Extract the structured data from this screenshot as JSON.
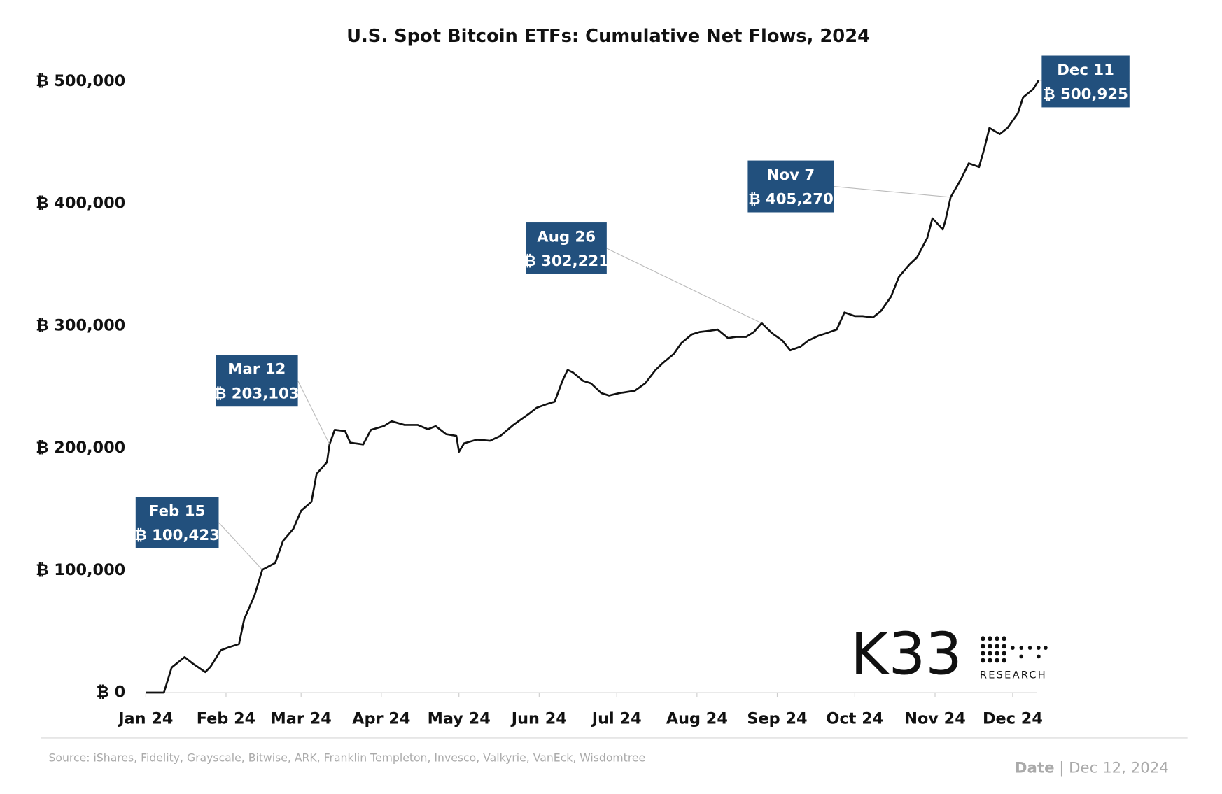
{
  "chart_data": {
    "type": "line",
    "title": "U.S. Spot Bitcoin ETFs: Cumulative Net Flows, 2024",
    "x": [
      "2024-01-01",
      "2024-01-08",
      "2024-01-11",
      "2024-01-16",
      "2024-01-19",
      "2024-01-24",
      "2024-01-26",
      "2024-01-30",
      "2024-02-02",
      "2024-02-06",
      "2024-02-08",
      "2024-02-12",
      "2024-02-15",
      "2024-02-20",
      "2024-02-23",
      "2024-02-27",
      "2024-03-01",
      "2024-03-05",
      "2024-03-07",
      "2024-03-11",
      "2024-03-12",
      "2024-03-14",
      "2024-03-18",
      "2024-03-20",
      "2024-03-25",
      "2024-03-28",
      "2024-04-02",
      "2024-04-05",
      "2024-04-10",
      "2024-04-15",
      "2024-04-19",
      "2024-04-22",
      "2024-04-26",
      "2024-04-30",
      "2024-05-01",
      "2024-05-03",
      "2024-05-08",
      "2024-05-13",
      "2024-05-17",
      "2024-05-22",
      "2024-05-28",
      "2024-05-31",
      "2024-06-04",
      "2024-06-07",
      "2024-06-10",
      "2024-06-12",
      "2024-06-14",
      "2024-06-18",
      "2024-06-21",
      "2024-06-25",
      "2024-06-28",
      "2024-07-02",
      "2024-07-08",
      "2024-07-12",
      "2024-07-16",
      "2024-07-19",
      "2024-07-23",
      "2024-07-26",
      "2024-07-30",
      "2024-08-02",
      "2024-08-06",
      "2024-08-09",
      "2024-08-13",
      "2024-08-16",
      "2024-08-20",
      "2024-08-23",
      "2024-08-26",
      "2024-08-30",
      "2024-09-03",
      "2024-09-06",
      "2024-09-10",
      "2024-09-13",
      "2024-09-17",
      "2024-09-20",
      "2024-09-24",
      "2024-09-27",
      "2024-10-01",
      "2024-10-04",
      "2024-10-08",
      "2024-10-11",
      "2024-10-15",
      "2024-10-18",
      "2024-10-22",
      "2024-10-25",
      "2024-10-29",
      "2024-10-31",
      "2024-11-04",
      "2024-11-05",
      "2024-11-07",
      "2024-11-11",
      "2024-11-14",
      "2024-11-18",
      "2024-11-20",
      "2024-11-22",
      "2024-11-26",
      "2024-11-29",
      "2024-12-03",
      "2024-12-05",
      "2024-12-09",
      "2024-12-11"
    ],
    "series": [
      {
        "color": "#111111",
        "values": [
          0,
          0,
          20500,
          29000,
          24000,
          16700,
          21000,
          34600,
          37000,
          39700,
          60000,
          79500,
          100423,
          106000,
          124000,
          134000,
          148700,
          156000,
          179000,
          188500,
          203103,
          215000,
          214000,
          204500,
          203000,
          215000,
          218000,
          222000,
          219000,
          219000,
          215500,
          218000,
          211500,
          210000,
          197000,
          204000,
          207000,
          206000,
          210000,
          219000,
          228000,
          233000,
          236000,
          238000,
          255000,
          264000,
          262000,
          255000,
          253000,
          245000,
          243000,
          245000,
          247000,
          253000,
          264000,
          270000,
          277000,
          286000,
          293000,
          295000,
          296000,
          297000,
          290000,
          291000,
          291000,
          295000,
          302221,
          294000,
          288000,
          280000,
          283000,
          288000,
          292000,
          294000,
          297000,
          311000,
          308000,
          308000,
          307000,
          312000,
          324000,
          340000,
          350000,
          356000,
          372000,
          388000,
          379000,
          386000,
          405270,
          420000,
          433000,
          430000,
          445000,
          462000,
          457000,
          462000,
          474000,
          487000,
          494000,
          500925
        ]
      }
    ],
    "xlim": [
      "2024-01-01",
      "2024-12-11"
    ],
    "xticks": [
      {
        "value": "2024-01-01",
        "label": "Jan 24"
      },
      {
        "value": "2024-02-01",
        "label": "Feb 24"
      },
      {
        "value": "2024-03-01",
        "label": "Mar 24"
      },
      {
        "value": "2024-04-01",
        "label": "Apr 24"
      },
      {
        "value": "2024-05-01",
        "label": "May 24"
      },
      {
        "value": "2024-06-01",
        "label": "Jun 24"
      },
      {
        "value": "2024-07-01",
        "label": "Jul 24"
      },
      {
        "value": "2024-08-01",
        "label": "Aug 24"
      },
      {
        "value": "2024-09-01",
        "label": "Sep 24"
      },
      {
        "value": "2024-10-01",
        "label": "Oct 24"
      },
      {
        "value": "2024-11-01",
        "label": "Nov 24"
      },
      {
        "value": "2024-12-01",
        "label": "Dec 24"
      }
    ],
    "ylim": [
      0,
      500000
    ],
    "yticks": [
      {
        "value": 0,
        "label": "₿ 0"
      },
      {
        "value": 100000,
        "label": "₿ 100,000"
      },
      {
        "value": 200000,
        "label": "₿ 200,000"
      },
      {
        "value": 300000,
        "label": "₿ 300,000"
      },
      {
        "value": 400000,
        "label": "₿ 400,000"
      },
      {
        "value": 500000,
        "label": "₿ 500,000"
      }
    ],
    "annotation_color": "#22507d",
    "annotations": [
      {
        "x": "2024-02-15",
        "label": "Feb 15",
        "value": 100423,
        "value_label": "₿ 100,423"
      },
      {
        "x": "2024-03-12",
        "label": "Mar 12",
        "value": 203103,
        "value_label": "₿ 203,103"
      },
      {
        "x": "2024-08-26",
        "label": "Aug 26",
        "value": 302221,
        "value_label": "₿ 302,221"
      },
      {
        "x": "2024-11-07",
        "label": "Nov 7",
        "value": 405270,
        "value_label": "₿ 405,270"
      },
      {
        "x": "2024-12-11",
        "label": "Dec 11",
        "value": 500925,
        "value_label": "₿ 500,925"
      }
    ],
    "source": "Source: iShares, Fidelity, Grayscale, Bitwise, ARK, Franklin Templeton, Invesco, Valkyrie, VanEck, Wisdomtree",
    "date_label": "Date",
    "date": "Dec 12, 2024",
    "logo": {
      "name": "K33",
      "subtitle": "RESEARCH"
    }
  }
}
